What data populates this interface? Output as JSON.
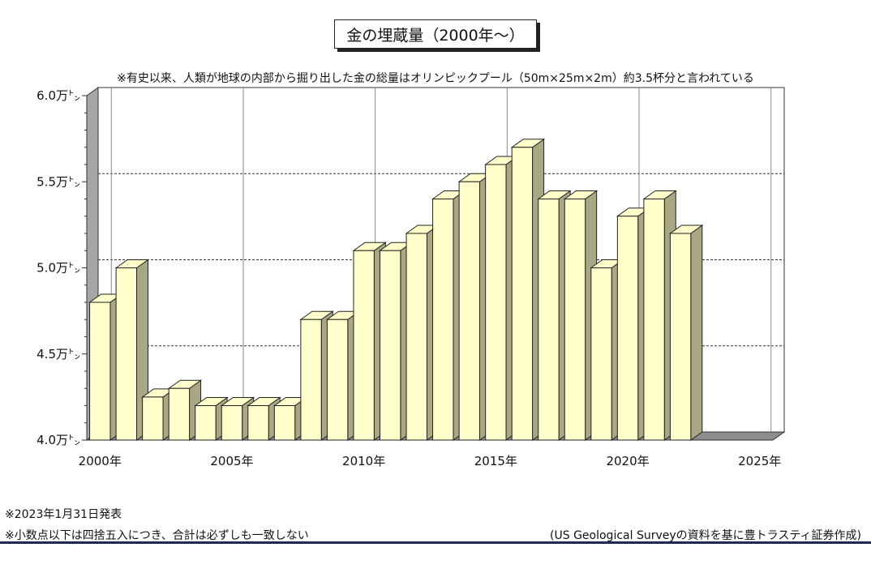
{
  "chart_data": {
    "type": "bar",
    "title": "金の埋蔵量（2000年～）",
    "subtitle": "※有史以来、人類が地球の内部から掘り出した金の総量はオリンピックプール（50m×25m×2m）約3.5杯分と言われている",
    "unit_suffix": "万㌧",
    "ylim": [
      4.0,
      6.0
    ],
    "y_ticks": [
      "6.0",
      "5.5",
      "5.0",
      "4.5",
      "4.0"
    ],
    "y_tick_values": [
      6.0,
      5.5,
      5.0,
      4.5,
      4.0
    ],
    "x_ticks": [
      "2000年",
      "2005年",
      "2010年",
      "2015年",
      "2020年",
      "2025年"
    ],
    "x_tick_years": [
      2000,
      2005,
      2010,
      2015,
      2020,
      2025
    ],
    "years": [
      2000,
      2001,
      2002,
      2003,
      2004,
      2005,
      2006,
      2007,
      2008,
      2009,
      2010,
      2011,
      2012,
      2013,
      2014,
      2015,
      2016,
      2017,
      2018,
      2019,
      2020,
      2021,
      2022
    ],
    "values": [
      4.8,
      5.0,
      4.25,
      4.3,
      4.2,
      4.2,
      4.2,
      4.2,
      4.7,
      4.7,
      5.1,
      5.1,
      5.2,
      5.4,
      5.5,
      5.6,
      5.7,
      5.4,
      5.4,
      5.0,
      5.3,
      5.4,
      5.2
    ],
    "bar_color": "#ffffcc",
    "bar_side_color": "#a8a884",
    "grid": true
  },
  "footer": {
    "note_date": "※2023年1月31日発表",
    "note_rounding": "※小数点以下は四捨五入につき、合計は必ずしも一致しない",
    "source": "(US Geological Surveyの資料を基に豊トラスティ証券作成)"
  }
}
